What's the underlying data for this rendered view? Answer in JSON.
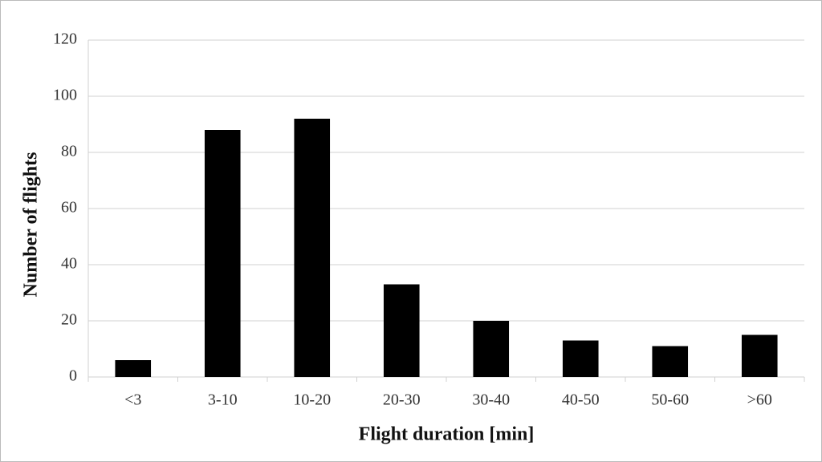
{
  "chart_data": {
    "type": "bar",
    "x_label": "Flight duration [min]",
    "y_label": "Number of flights",
    "categories": [
      "<3",
      "3-10",
      "10-20",
      "20-30",
      "30-40",
      "40-50",
      "50-60",
      ">60"
    ],
    "values": [
      6,
      88,
      92,
      33,
      20,
      13,
      11,
      15
    ],
    "color": "#000000",
    "ylim": [
      0,
      120
    ],
    "yticks": [
      0,
      20,
      40,
      60,
      80,
      100,
      120
    ],
    "grid": true
  }
}
